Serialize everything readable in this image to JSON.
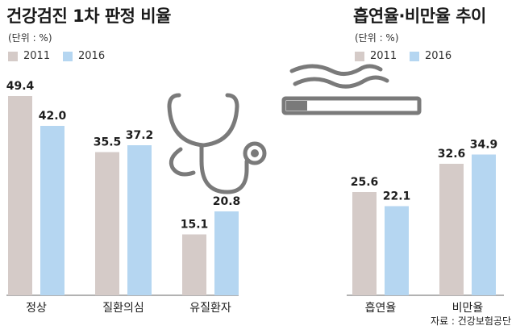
{
  "colors": {
    "s2011": "#d5cbc8",
    "s2016": "#b5d6f1",
    "value_text": "#1e1e1e",
    "axis": "#666666",
    "icon": "#7a7a7a"
  },
  "left": {
    "title": "건강검진 1차 판정 비율",
    "unit": "(단위 : %)",
    "legend": [
      "2011",
      "2016"
    ]
  },
  "right": {
    "title": "흡연율·비만율 추이",
    "unit": "(단위 : %)",
    "legend": [
      "2011",
      "2016"
    ]
  },
  "source": "자료 : 건강보험공단",
  "icons": {
    "left": "stethoscope-icon",
    "right": "cigarette-icon"
  },
  "chart_data": [
    {
      "type": "bar",
      "title": "건강검진 1차 판정 비율",
      "unit": "(단위 : %)",
      "categories": [
        "정상",
        "질환의심",
        "유질환자"
      ],
      "series": [
        {
          "name": "2011",
          "values": [
            49.4,
            35.5,
            15.1
          ]
        },
        {
          "name": "2016",
          "values": [
            42.0,
            37.2,
            20.8
          ]
        }
      ],
      "value_labels": [
        [
          "49.4",
          "35.5",
          "15.1"
        ],
        [
          "42.0",
          "37.2",
          "20.8"
        ]
      ],
      "ylim": [
        0,
        60
      ],
      "grid": false,
      "legend": "top-left"
    },
    {
      "type": "bar",
      "title": "흡연율·비만율 추이",
      "unit": "(단위 : %)",
      "categories": [
        "흡연율",
        "비만율"
      ],
      "series": [
        {
          "name": "2011",
          "values": [
            25.6,
            32.6
          ]
        },
        {
          "name": "2016",
          "values": [
            22.1,
            34.9
          ]
        }
      ],
      "value_labels": [
        [
          "25.6",
          "32.6"
        ],
        [
          "22.1",
          "34.9"
        ]
      ],
      "ylim": [
        0,
        60
      ],
      "grid": false,
      "legend": "top-left"
    }
  ]
}
